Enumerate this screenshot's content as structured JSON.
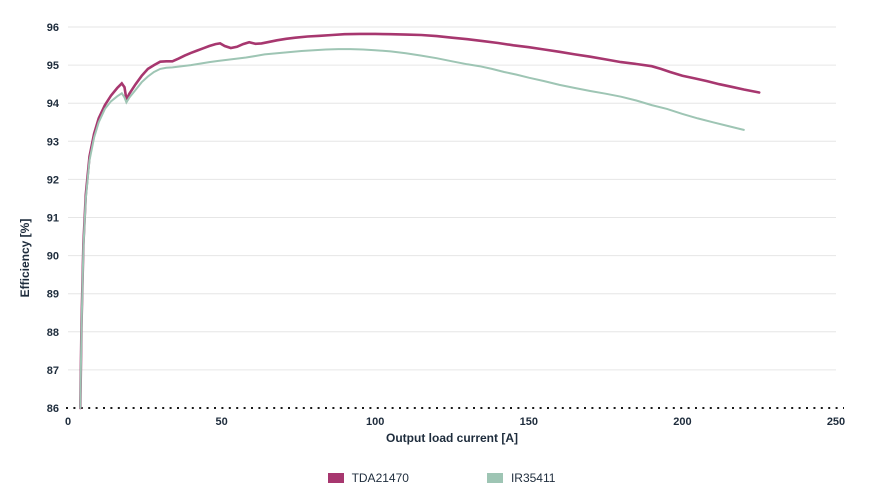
{
  "chart_data": {
    "type": "line",
    "title": "",
    "xlabel": "Output load current [A]",
    "ylabel": "Efficiency [%]",
    "xlim": [
      0,
      250
    ],
    "ylim": [
      86,
      96
    ],
    "x_ticks": [
      0,
      50,
      100,
      150,
      200,
      250
    ],
    "y_ticks": [
      86,
      87,
      88,
      89,
      90,
      91,
      92,
      93,
      94,
      95,
      96
    ],
    "grid": "horizontal-only",
    "gridline_color": "#e6e6e6",
    "text_color": "#1e2c3c",
    "background_color": "#ffffff",
    "legend_position": "bottom-center",
    "baseline": {
      "style": "dotted",
      "color": "#1a1a1a",
      "at_y": 86
    },
    "series": [
      {
        "name": "TDA21470",
        "color": "#a7376f",
        "width": 2.6,
        "points": [
          [
            4,
            86.0
          ],
          [
            4.4,
            88.2
          ],
          [
            5,
            90.3
          ],
          [
            5.8,
            91.6
          ],
          [
            7,
            92.6
          ],
          [
            8.5,
            93.2
          ],
          [
            10,
            93.6
          ],
          [
            12,
            93.95
          ],
          [
            14,
            94.2
          ],
          [
            16,
            94.4
          ],
          [
            17.5,
            94.52
          ],
          [
            18.4,
            94.42
          ],
          [
            19,
            94.1
          ],
          [
            20,
            94.25
          ],
          [
            22,
            94.5
          ],
          [
            24,
            94.72
          ],
          [
            26,
            94.9
          ],
          [
            28,
            95.0
          ],
          [
            30,
            95.09
          ],
          [
            32,
            95.1
          ],
          [
            34,
            95.1
          ],
          [
            36,
            95.17
          ],
          [
            38,
            95.25
          ],
          [
            40,
            95.32
          ],
          [
            42,
            95.38
          ],
          [
            44,
            95.44
          ],
          [
            46,
            95.5
          ],
          [
            48,
            95.55
          ],
          [
            49.5,
            95.57
          ],
          [
            51,
            95.5
          ],
          [
            53,
            95.45
          ],
          [
            55,
            95.48
          ],
          [
            57,
            95.55
          ],
          [
            59,
            95.6
          ],
          [
            61,
            95.56
          ],
          [
            63,
            95.57
          ],
          [
            65,
            95.6
          ],
          [
            68,
            95.65
          ],
          [
            71,
            95.69
          ],
          [
            74,
            95.72
          ],
          [
            78,
            95.75
          ],
          [
            82,
            95.77
          ],
          [
            86,
            95.79
          ],
          [
            90,
            95.81
          ],
          [
            95,
            95.82
          ],
          [
            100,
            95.82
          ],
          [
            105,
            95.81
          ],
          [
            110,
            95.8
          ],
          [
            115,
            95.79
          ],
          [
            120,
            95.76
          ],
          [
            125,
            95.72
          ],
          [
            130,
            95.68
          ],
          [
            135,
            95.63
          ],
          [
            140,
            95.58
          ],
          [
            145,
            95.52
          ],
          [
            150,
            95.47
          ],
          [
            155,
            95.41
          ],
          [
            160,
            95.35
          ],
          [
            165,
            95.28
          ],
          [
            170,
            95.22
          ],
          [
            175,
            95.15
          ],
          [
            180,
            95.08
          ],
          [
            185,
            95.03
          ],
          [
            190,
            94.97
          ],
          [
            193,
            94.9
          ],
          [
            196,
            94.82
          ],
          [
            200,
            94.72
          ],
          [
            204,
            94.65
          ],
          [
            208,
            94.58
          ],
          [
            212,
            94.5
          ],
          [
            216,
            94.43
          ],
          [
            220,
            94.36
          ],
          [
            225,
            94.28
          ]
        ]
      },
      {
        "name": "IR35411",
        "color": "#9ec5b4",
        "width": 2.0,
        "points": [
          [
            4,
            86.0
          ],
          [
            4.4,
            88.1
          ],
          [
            5,
            90.2
          ],
          [
            5.8,
            91.5
          ],
          [
            7,
            92.5
          ],
          [
            8.5,
            93.1
          ],
          [
            10,
            93.5
          ],
          [
            12,
            93.85
          ],
          [
            14,
            94.05
          ],
          [
            16,
            94.18
          ],
          [
            17.5,
            94.26
          ],
          [
            18.4,
            94.15
          ],
          [
            19,
            94.02
          ],
          [
            20,
            94.15
          ],
          [
            22,
            94.35
          ],
          [
            24,
            94.55
          ],
          [
            26,
            94.7
          ],
          [
            28,
            94.82
          ],
          [
            30,
            94.9
          ],
          [
            32,
            94.93
          ],
          [
            34,
            94.94
          ],
          [
            36,
            94.96
          ],
          [
            38,
            94.98
          ],
          [
            40,
            95.0
          ],
          [
            43,
            95.04
          ],
          [
            46,
            95.08
          ],
          [
            49,
            95.11
          ],
          [
            52,
            95.14
          ],
          [
            55,
            95.17
          ],
          [
            58,
            95.2
          ],
          [
            61,
            95.24
          ],
          [
            64,
            95.28
          ],
          [
            68,
            95.31
          ],
          [
            72,
            95.34
          ],
          [
            76,
            95.37
          ],
          [
            80,
            95.39
          ],
          [
            84,
            95.41
          ],
          [
            88,
            95.42
          ],
          [
            92,
            95.42
          ],
          [
            96,
            95.41
          ],
          [
            100,
            95.39
          ],
          [
            105,
            95.36
          ],
          [
            110,
            95.31
          ],
          [
            115,
            95.25
          ],
          [
            120,
            95.18
          ],
          [
            125,
            95.1
          ],
          [
            130,
            95.02
          ],
          [
            134,
            94.97
          ],
          [
            138,
            94.9
          ],
          [
            142,
            94.82
          ],
          [
            146,
            94.75
          ],
          [
            150,
            94.67
          ],
          [
            155,
            94.58
          ],
          [
            160,
            94.48
          ],
          [
            165,
            94.4
          ],
          [
            170,
            94.32
          ],
          [
            175,
            94.25
          ],
          [
            180,
            94.17
          ],
          [
            185,
            94.07
          ],
          [
            190,
            93.95
          ],
          [
            195,
            93.85
          ],
          [
            200,
            93.72
          ],
          [
            205,
            93.6
          ],
          [
            210,
            93.5
          ],
          [
            215,
            93.4
          ],
          [
            220,
            93.3
          ]
        ]
      }
    ]
  }
}
